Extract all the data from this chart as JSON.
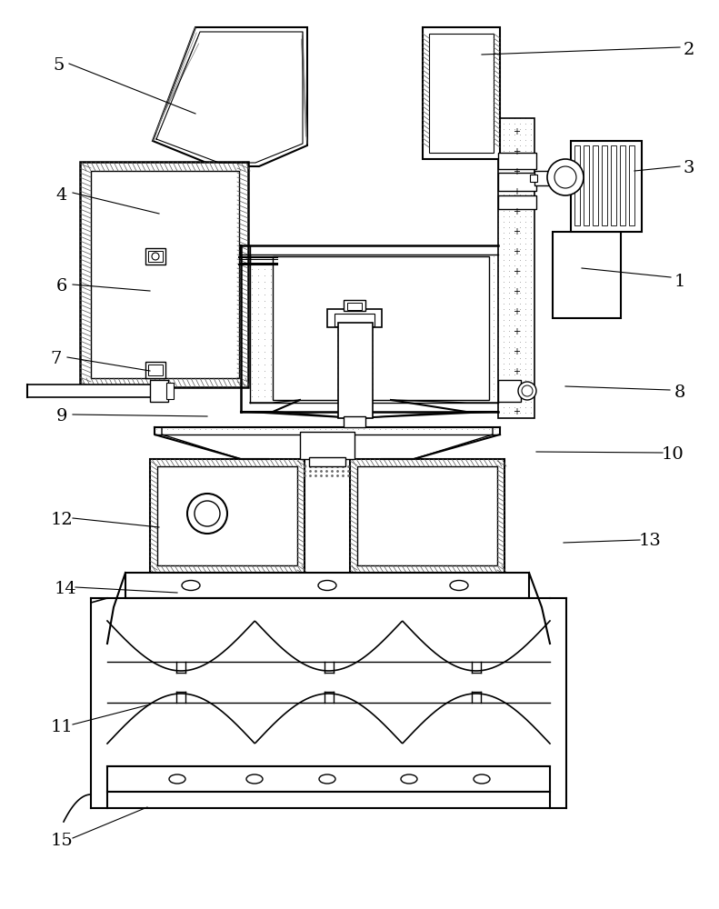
{
  "background": "#ffffff",
  "lc": "#000000",
  "labels": [
    [
      "1",
      748,
      310,
      640,
      295,
      738,
      305
    ],
    [
      "2",
      758,
      55,
      530,
      60,
      748,
      52
    ],
    [
      "3",
      758,
      185,
      698,
      188,
      748,
      183
    ],
    [
      "4",
      68,
      215,
      175,
      235,
      80,
      212
    ],
    [
      "5",
      65,
      72,
      215,
      125,
      76,
      70
    ],
    [
      "6",
      68,
      315,
      165,
      320,
      80,
      313
    ],
    [
      "7",
      62,
      395,
      165,
      408,
      74,
      393
    ],
    [
      "8",
      748,
      432,
      622,
      425,
      737,
      429
    ],
    [
      "9",
      68,
      458,
      228,
      458,
      80,
      456
    ],
    [
      "10",
      740,
      500,
      590,
      497,
      729,
      498
    ],
    [
      "11",
      68,
      800,
      165,
      775,
      80,
      797
    ],
    [
      "12",
      68,
      572,
      175,
      580,
      80,
      570
    ],
    [
      "13",
      715,
      595,
      620,
      597,
      704,
      594
    ],
    [
      "14",
      72,
      648,
      195,
      652,
      83,
      646
    ],
    [
      "15",
      68,
      925,
      162,
      888,
      80,
      922
    ]
  ]
}
